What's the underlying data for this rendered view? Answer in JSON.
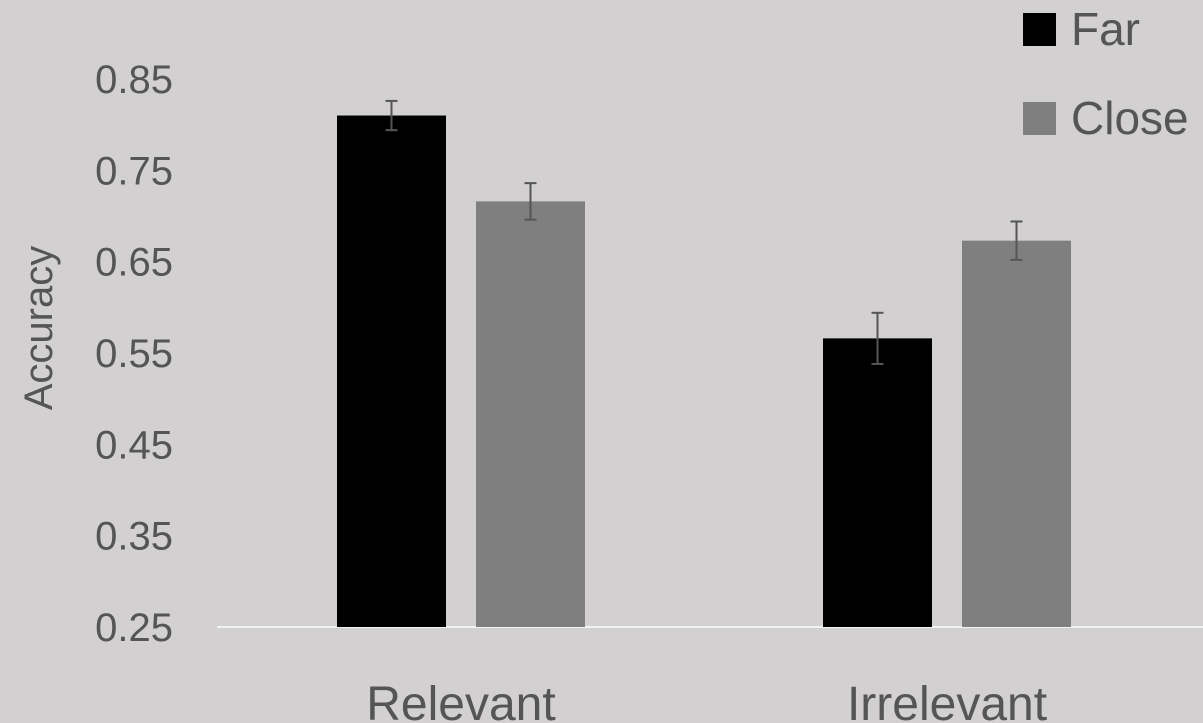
{
  "chart_data": {
    "type": "bar",
    "categories": [
      "Relevant",
      "Irrelevant"
    ],
    "series": [
      {
        "name": "Far",
        "values": [
          0.81,
          0.566
        ],
        "errors": [
          0.016,
          0.028
        ],
        "color": "#000000"
      },
      {
        "name": "Close",
        "values": [
          0.716,
          0.673
        ],
        "errors": [
          0.02,
          0.021
        ],
        "color": "#7f7f7f"
      }
    ],
    "ylabel": "Accuracy",
    "xlabel": "",
    "title": "",
    "ylim": [
      0.25,
      0.85
    ],
    "yticks": [
      "0.85",
      "0.75",
      "0.65",
      "0.55",
      "0.45",
      "0.35",
      "0.25"
    ],
    "ytick_values": [
      0.85,
      0.75,
      0.65,
      0.55,
      0.45,
      0.35,
      0.25
    ],
    "grid": false,
    "legend_position": "top-right",
    "colors": {
      "background": "#d2d0d0",
      "text": "#555555",
      "axis": "#f2f2f2",
      "error_bar": "#555555"
    }
  }
}
